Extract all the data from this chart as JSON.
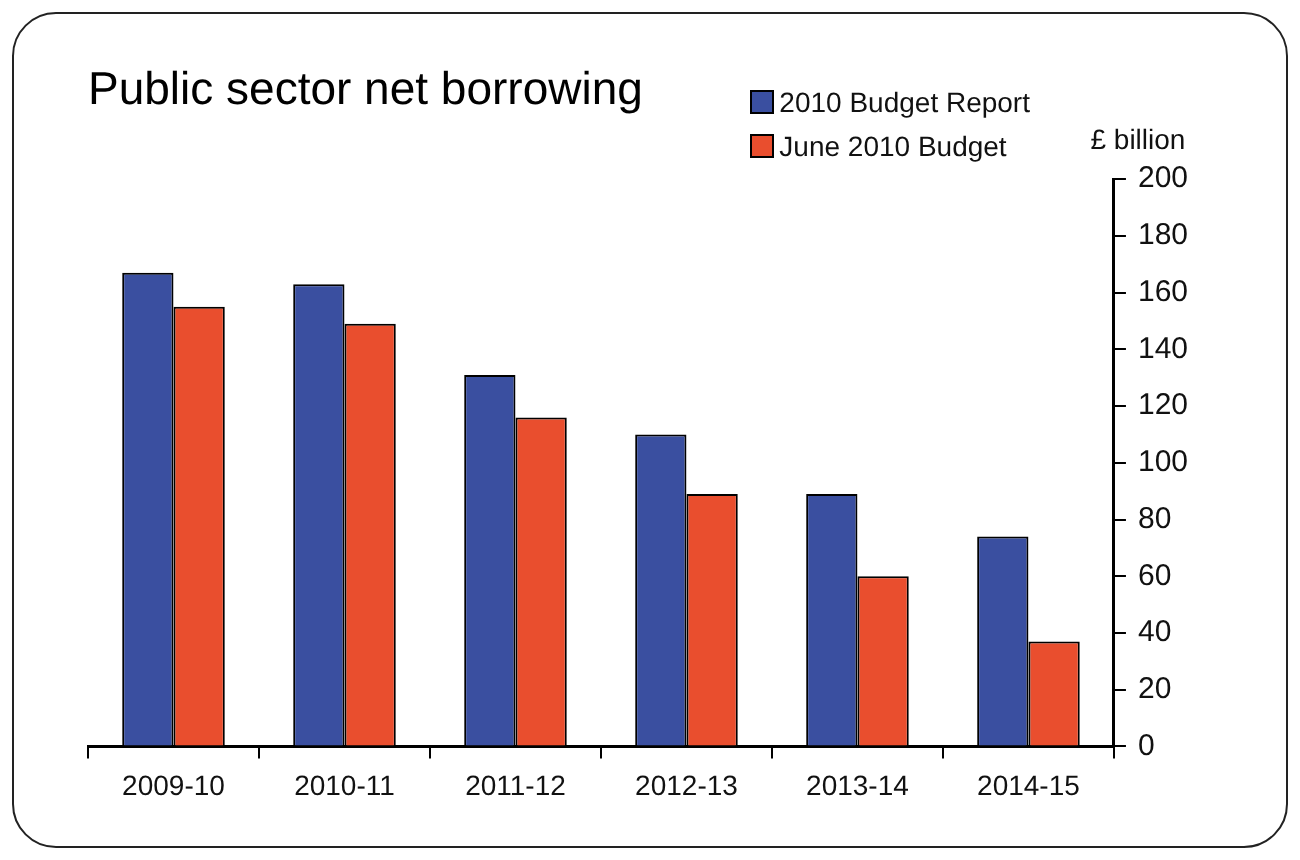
{
  "chart_data": {
    "type": "bar",
    "title": "Public sector net borrowing",
    "ylabel": "£ billion",
    "categories": [
      "2009-10",
      "2010-11",
      "2011-12",
      "2012-13",
      "2013-14",
      "2014-15"
    ],
    "series": [
      {
        "name": "2010 Budget Report",
        "color": "#3a4fa0",
        "values": [
          167,
          163,
          131,
          110,
          89,
          74
        ]
      },
      {
        "name": "June 2010 Budget",
        "color": "#e94e2e",
        "values": [
          155,
          149,
          116,
          89,
          60,
          37
        ]
      }
    ],
    "ylim": [
      0,
      200
    ],
    "yticks": [
      0,
      20,
      40,
      60,
      80,
      100,
      120,
      140,
      160,
      180,
      200
    ],
    "grid": false,
    "legend": "top right"
  }
}
